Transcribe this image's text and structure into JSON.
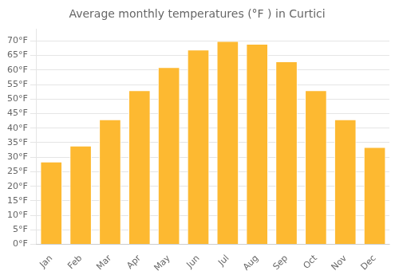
{
  "chart_data": {
    "type": "bar",
    "title": "Average monthly temperatures (°F ) in Curtici",
    "categories": [
      "Jan",
      "Feb",
      "Mar",
      "Apr",
      "May",
      "Jun",
      "Jul",
      "Aug",
      "Sep",
      "Oct",
      "Nov",
      "Dec"
    ],
    "values": [
      28.5,
      34.0,
      43.0,
      53.0,
      61.0,
      67.0,
      70.0,
      69.0,
      63.0,
      53.0,
      43.0,
      33.5
    ],
    "color": "#FDB931",
    "ylim": [
      0,
      74
    ],
    "yticks": [
      {
        "value": 0,
        "label": "0°F"
      },
      {
        "value": 5,
        "label": "5°F"
      },
      {
        "value": 10,
        "label": "10°F"
      },
      {
        "value": 15,
        "label": "15°F"
      },
      {
        "value": 20,
        "label": "20°F"
      },
      {
        "value": 25,
        "label": "25°F"
      },
      {
        "value": 30,
        "label": "30°F"
      },
      {
        "value": 35,
        "label": "35°F"
      },
      {
        "value": 40,
        "label": "40°F"
      },
      {
        "value": 45,
        "label": "45°F"
      },
      {
        "value": 50,
        "label": "50°F"
      },
      {
        "value": 55,
        "label": "55°F"
      },
      {
        "value": 60,
        "label": "60°F"
      },
      {
        "value": 65,
        "label": "65°F"
      },
      {
        "value": 70,
        "label": "70°F"
      }
    ],
    "grid": true
  }
}
